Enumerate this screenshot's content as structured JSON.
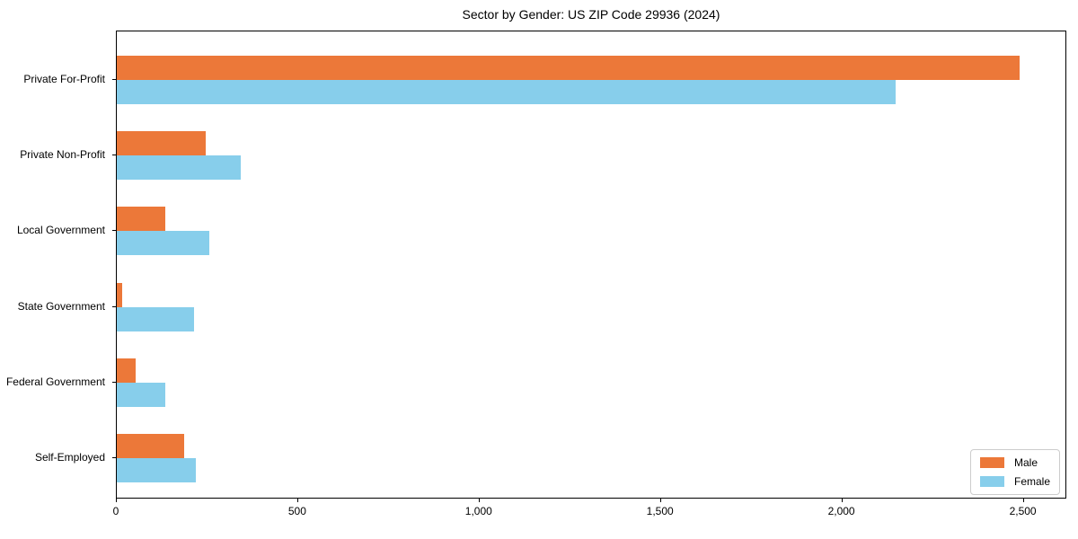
{
  "title": "Sector by Gender: US ZIP Code 29936 (2024)",
  "colors": {
    "male": "#EC7839",
    "female": "#87CEEB",
    "spine": "#000000",
    "legend_border": "#cccccc",
    "background": "#ffffff"
  },
  "chart_data": {
    "type": "bar",
    "orientation": "horizontal",
    "title": "Sector by Gender: US ZIP Code 29936 (2024)",
    "xlabel": "",
    "ylabel": "",
    "categories": [
      "Private For-Profit",
      "Private Non-Profit",
      "Local Government",
      "State Government",
      "Federal Government",
      "Self-Employed"
    ],
    "series": [
      {
        "name": "Male",
        "color": "#EC7839",
        "values": [
          2489,
          246,
          133,
          14,
          52,
          185
        ]
      },
      {
        "name": "Female",
        "color": "#87CEEB",
        "values": [
          2147,
          341,
          255,
          212,
          133,
          219
        ]
      }
    ],
    "xlim": [
      0,
      2615
    ],
    "x_ticks": [
      0,
      500,
      1000,
      1500,
      2000,
      2500
    ],
    "x_tick_labels": [
      "0",
      "500",
      "1,000",
      "1,500",
      "2,000",
      "2,500"
    ],
    "grid": false,
    "legend_position": "lower right"
  }
}
